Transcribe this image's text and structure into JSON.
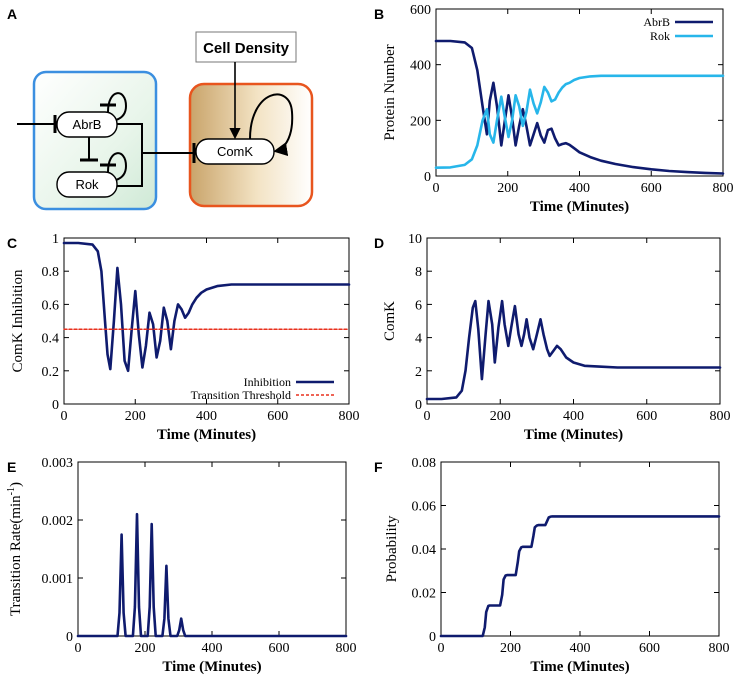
{
  "panel_labels": {
    "a": "A",
    "b": "B",
    "c": "C",
    "d": "D",
    "e": "E",
    "f": "F"
  },
  "diagram": {
    "nodes": {
      "abrb": "AbrB",
      "rok": "Rok",
      "comk": "ComK",
      "cell_density": "Cell Density"
    },
    "colors": {
      "blue_box": "#3b8fe0",
      "orange_box": "#e8551e",
      "arrow": "#000000"
    }
  },
  "colors": {
    "navy": "#0f1b6e",
    "cyan": "#27b6ea",
    "threshold": "#e8301e"
  },
  "chart_data": [
    {
      "id": "B",
      "type": "line",
      "xlabel": "Time (Minutes)",
      "ylabel": "Protein Number",
      "xlim": [
        0,
        800
      ],
      "ylim": [
        0,
        600
      ],
      "xticks": [
        0,
        200,
        400,
        600,
        800
      ],
      "yticks": [
        0,
        200,
        400,
        600
      ],
      "legend": [
        "AbrB",
        "Rok"
      ],
      "legend_position": "top-right",
      "series": [
        {
          "name": "AbrB",
          "color": "#0f1b6e",
          "x": [
            0,
            40,
            80,
            100,
            115,
            130,
            142,
            150,
            160,
            170,
            182,
            192,
            202,
            212,
            222,
            232,
            242,
            252,
            262,
            272,
            282,
            292,
            302,
            312,
            322,
            332,
            342,
            352,
            362,
            372,
            385,
            400,
            430,
            460,
            500,
            550,
            600,
            650,
            700,
            750,
            800
          ],
          "y": [
            485,
            485,
            480,
            460,
            380,
            250,
            150,
            270,
            335,
            250,
            110,
            200,
            290,
            210,
            110,
            180,
            240,
            180,
            110,
            150,
            190,
            145,
            120,
            165,
            170,
            135,
            110,
            115,
            118,
            112,
            100,
            85,
            68,
            55,
            43,
            32,
            24,
            18,
            14,
            11,
            9
          ]
        },
        {
          "name": "Rok",
          "color": "#27b6ea",
          "x": [
            0,
            40,
            80,
            100,
            115,
            130,
            142,
            150,
            160,
            170,
            182,
            192,
            202,
            212,
            222,
            232,
            242,
            252,
            262,
            272,
            282,
            292,
            302,
            312,
            322,
            332,
            342,
            352,
            362,
            372,
            385,
            400,
            430,
            460,
            500,
            550,
            600,
            650,
            700,
            750,
            800
          ],
          "y": [
            30,
            31,
            40,
            60,
            110,
            200,
            240,
            150,
            120,
            200,
            285,
            210,
            140,
            200,
            290,
            250,
            180,
            230,
            310,
            260,
            225,
            265,
            320,
            300,
            268,
            275,
            300,
            318,
            330,
            335,
            345,
            352,
            358,
            360,
            360,
            360,
            360,
            360,
            360,
            360,
            360
          ]
        }
      ]
    },
    {
      "id": "C",
      "type": "line",
      "xlabel": "Time (Minutes)",
      "ylabel": "ComK Inhibition",
      "xlim": [
        0,
        800
      ],
      "ylim": [
        0,
        1
      ],
      "xticks": [
        0,
        200,
        400,
        600,
        800
      ],
      "yticks": [
        0,
        0.2,
        0.4,
        0.6,
        0.8,
        1
      ],
      "legend": [
        "Inhibition",
        "Transition Threshold"
      ],
      "legend_position": "bottom-right",
      "series": [
        {
          "name": "Inhibition",
          "color": "#0f1b6e",
          "x": [
            0,
            40,
            80,
            95,
            105,
            115,
            122,
            130,
            140,
            150,
            160,
            170,
            180,
            190,
            200,
            210,
            220,
            230,
            240,
            250,
            260,
            270,
            280,
            290,
            300,
            310,
            320,
            330,
            340,
            350,
            360,
            372,
            385,
            400,
            430,
            470,
            520,
            600,
            700,
            800
          ],
          "y": [
            0.97,
            0.97,
            0.96,
            0.92,
            0.8,
            0.5,
            0.3,
            0.21,
            0.5,
            0.82,
            0.6,
            0.26,
            0.2,
            0.45,
            0.68,
            0.42,
            0.22,
            0.35,
            0.55,
            0.48,
            0.28,
            0.38,
            0.58,
            0.5,
            0.33,
            0.5,
            0.6,
            0.57,
            0.52,
            0.55,
            0.6,
            0.64,
            0.67,
            0.69,
            0.71,
            0.72,
            0.72,
            0.72,
            0.72,
            0.72
          ]
        },
        {
          "name": "Transition Threshold",
          "color": "#e8301e",
          "x": [
            0,
            800
          ],
          "y": [
            0.45,
            0.45
          ]
        }
      ]
    },
    {
      "id": "D",
      "type": "line",
      "xlabel": "Time (Minutes)",
      "ylabel": "ComK",
      "xlim": [
        0,
        800
      ],
      "ylim": [
        0,
        10
      ],
      "xticks": [
        0,
        200,
        400,
        600,
        800
      ],
      "yticks": [
        0,
        2,
        4,
        6,
        8,
        10
      ],
      "series": [
        {
          "name": "ComK",
          "color": "#0f1b6e",
          "x": [
            0,
            40,
            80,
            95,
            105,
            115,
            125,
            132,
            140,
            150,
            160,
            168,
            178,
            185,
            195,
            205,
            212,
            222,
            230,
            240,
            250,
            258,
            265,
            272,
            280,
            290,
            300,
            310,
            318,
            328,
            335,
            345,
            355,
            365,
            380,
            400,
            430,
            470,
            520,
            600,
            700,
            800
          ],
          "y": [
            0.3,
            0.3,
            0.4,
            0.8,
            2.0,
            4.0,
            5.8,
            6.2,
            4.5,
            1.5,
            4.2,
            6.2,
            4.8,
            2.5,
            4.6,
            6.2,
            4.8,
            3.5,
            4.6,
            5.9,
            4.2,
            3.5,
            4.2,
            5.1,
            4.0,
            3.3,
            4.2,
            5.1,
            4.2,
            3.3,
            2.9,
            3.2,
            3.5,
            3.3,
            2.8,
            2.5,
            2.3,
            2.25,
            2.2,
            2.2,
            2.2,
            2.2
          ]
        }
      ]
    },
    {
      "id": "E",
      "type": "line",
      "xlabel": "Time (Minutes)",
      "ylabel": "Transition Rate(min-1)",
      "ylabel_main": "Transition Rate(min",
      "ylabel_sup": "-1",
      "ylabel_end": ")",
      "xlim": [
        0,
        800
      ],
      "ylim": [
        0,
        0.003
      ],
      "xticks": [
        0,
        200,
        400,
        600,
        800
      ],
      "yticks": [
        0,
        0.001,
        0.002,
        0.003
      ],
      "series": [
        {
          "name": "Transition Rate",
          "color": "#0f1b6e",
          "x": [
            0,
            118,
            124,
            130,
            136,
            142,
            164,
            170,
            176,
            182,
            188,
            208,
            214,
            220,
            226,
            232,
            252,
            258,
            264,
            270,
            276,
            296,
            302,
            308,
            314,
            320,
            800
          ],
          "y": [
            0,
            0,
            0.0004,
            0.00175,
            0.0004,
            0,
            0,
            0.0005,
            0.0021,
            0.0005,
            0,
            0,
            0.0005,
            0.00193,
            0.0005,
            0,
            0,
            0.0003,
            0.00121,
            0.0003,
            0,
            0,
            0.0001,
            0.0003,
            0.0001,
            0,
            0
          ]
        }
      ]
    },
    {
      "id": "F",
      "type": "line",
      "xlabel": "Time (Minutes)",
      "ylabel": "Probability",
      "xlim": [
        0,
        800
      ],
      "ylim": [
        0,
        0.08
      ],
      "xticks": [
        0,
        200,
        400,
        600,
        800
      ],
      "yticks": [
        0,
        0.02,
        0.04,
        0.06,
        0.08
      ],
      "series": [
        {
          "name": "Probability",
          "color": "#0f1b6e",
          "x": [
            0,
            120,
            126,
            130,
            136,
            140,
            170,
            176,
            180,
            186,
            190,
            215,
            221,
            225,
            231,
            235,
            260,
            266,
            270,
            276,
            280,
            300,
            306,
            310,
            316,
            320,
            800
          ],
          "y": [
            0,
            0,
            0.004,
            0.011,
            0.0138,
            0.014,
            0.014,
            0.019,
            0.026,
            0.0278,
            0.028,
            0.028,
            0.034,
            0.039,
            0.0408,
            0.041,
            0.041,
            0.046,
            0.05,
            0.0508,
            0.051,
            0.051,
            0.053,
            0.0545,
            0.0549,
            0.055,
            0.055
          ]
        }
      ]
    }
  ]
}
